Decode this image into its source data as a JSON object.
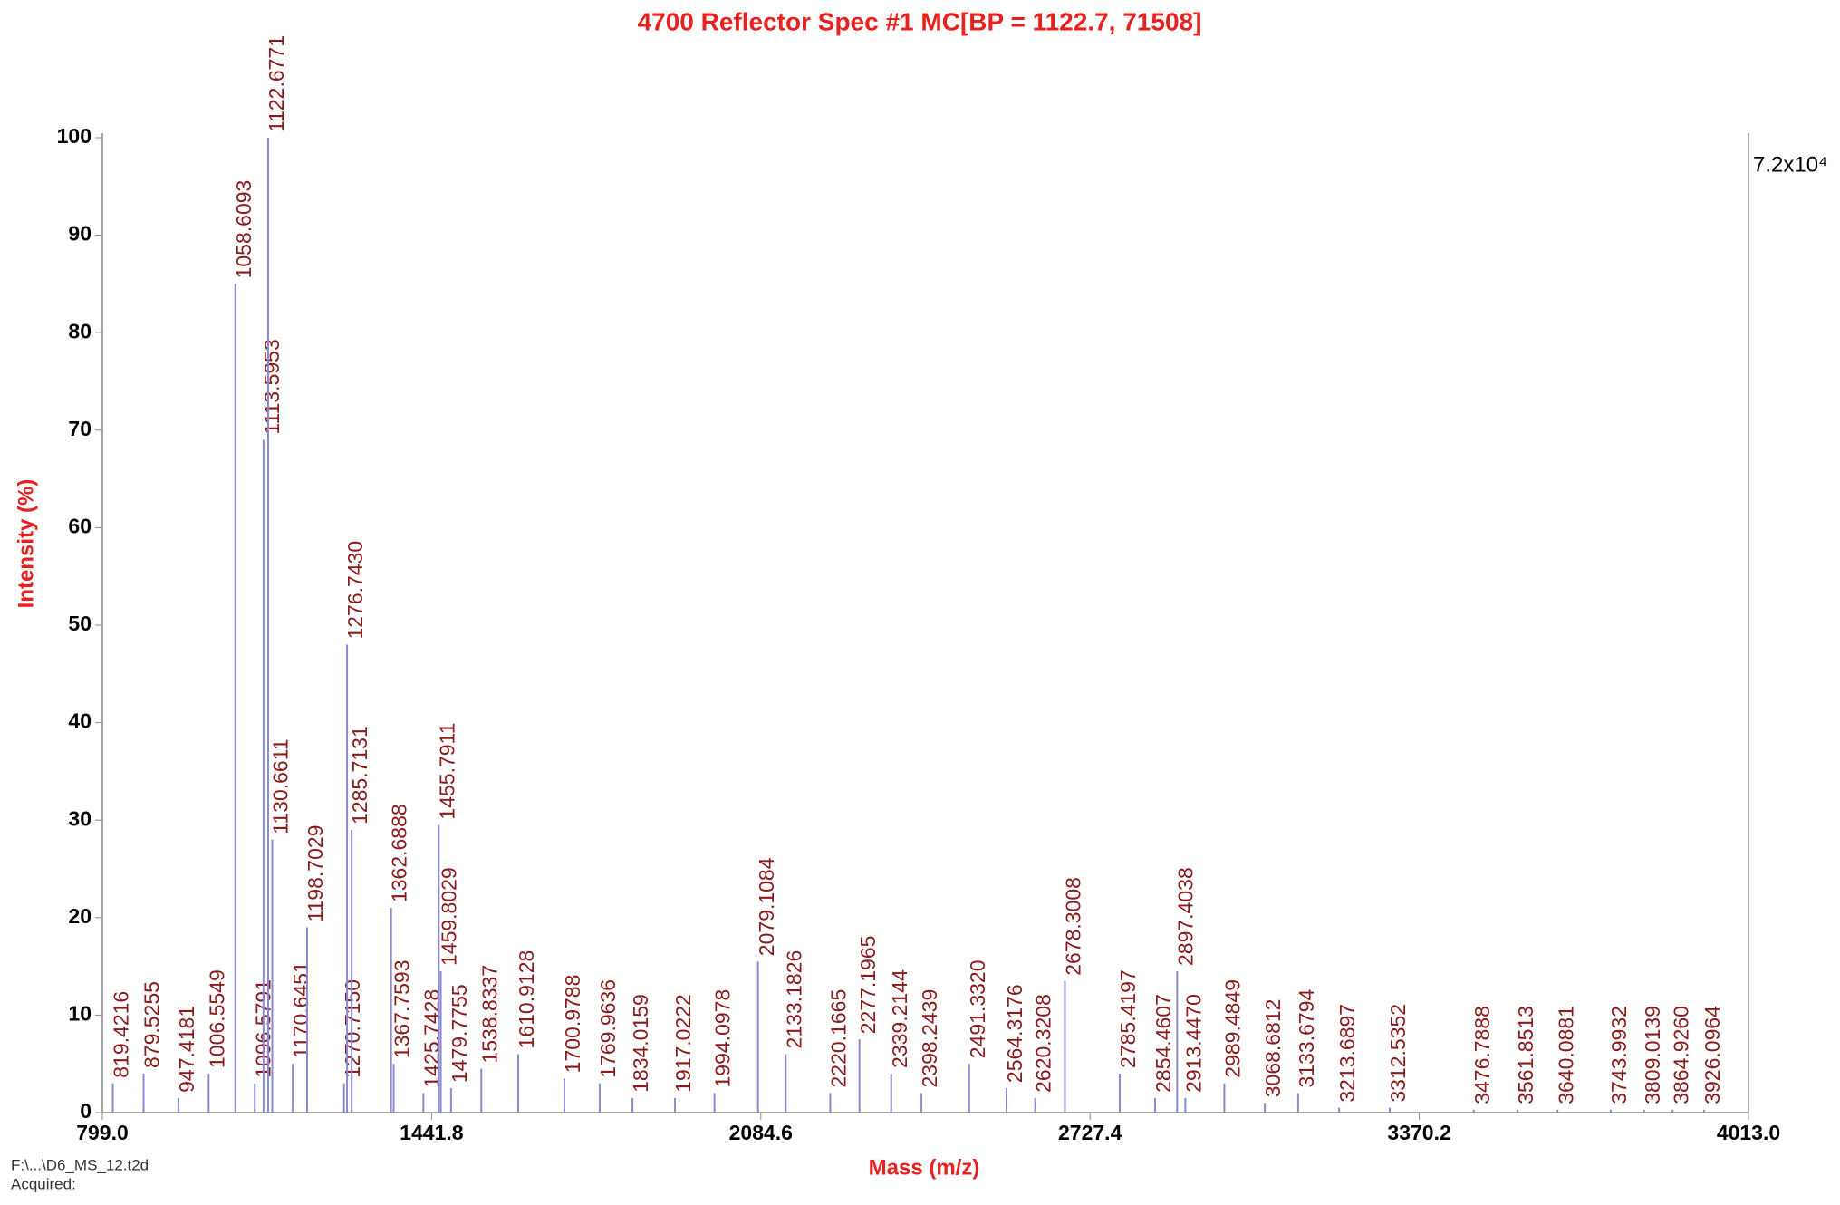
{
  "chart_data": {
    "type": "stick",
    "title": "4700 Reflector Spec #1 MC[BP = 1122.7, 71508]",
    "x_label": "Mass (m/z)",
    "y_label": "Intensity (%)",
    "scale_annotation": "7.2x10⁴",
    "file_note": "F:\\...\\D6_MS_12.t2d",
    "acquired_note": "Acquired:",
    "color": "#8a8ad0",
    "label_color": "#8b1a1a",
    "xlim": [
      799,
      4013
    ],
    "xticks": [
      {
        "value": 799,
        "label": "799.0"
      },
      1441.8,
      2084.6,
      2727.4,
      3370.2,
      {
        "value": 4013,
        "label": "4013.0"
      }
    ],
    "ylim": [
      0,
      100
    ],
    "yticks": [
      0,
      10,
      20,
      30,
      40,
      50,
      60,
      70,
      80,
      90,
      100
    ],
    "x": [
      819.4216,
      879.5255,
      947.4181,
      1006.5549,
      1058.6093,
      1096.5791,
      1113.5953,
      1122.6771,
      1130.6611,
      1170.6451,
      1198.7029,
      1270.715,
      1276.743,
      1285.7131,
      1362.6888,
      1367.7593,
      1425.7428,
      1455.7911,
      1459.8029,
      1479.7755,
      1538.8337,
      1610.9128,
      1700.9788,
      1769.9636,
      1834.0159,
      1917.0222,
      1994.0978,
      2079.1084,
      2133.1826,
      2220.1665,
      2277.1965,
      2339.2144,
      2398.2439,
      2491.332,
      2564.3176,
      2620.3208,
      2678.3008,
      2785.4197,
      2854.4607,
      2897.4038,
      2913.447,
      2989.4849,
      3068.6812,
      3133.6794,
      3213.6897,
      3312.5352,
      3476.7888,
      3561.8513,
      3640.0881,
      3743.9932,
      3809.0139,
      3864.926,
      3926.0964
    ],
    "x_labels": [
      "819.4216",
      "879.5255",
      "947.4181",
      "1006.5549",
      "1058.6093",
      "1096.5791",
      "1113.5953",
      "1122.6771",
      "1130.6611",
      "1170.6451",
      "1198.7029",
      "1270.7150",
      "1276.7430",
      "1285.7131",
      "1362.6888",
      "1367.7593",
      "1425.7428",
      "1455.7911",
      "1459.8029",
      "1479.7755",
      "1538.8337",
      "1610.9128",
      "1700.9788",
      "1769.9636",
      "1834.0159",
      "1917.0222",
      "1994.0978",
      "2079.1084",
      "2133.1826",
      "2220.1665",
      "2277.1965",
      "2339.2144",
      "2398.2439",
      "2491.3320",
      "2564.3176",
      "2620.3208",
      "2678.3008",
      "2785.4197",
      "2854.4607",
      "2897.4038",
      "2913.4470",
      "2989.4849",
      "3068.6812",
      "3133.6794",
      "3213.6897",
      "3312.5352",
      "3476.7888",
      "3561.8513",
      "3640.0881",
      "3743.9932",
      "3809.0139",
      "3864.9260",
      "3926.0964"
    ],
    "values": [
      3,
      4,
      1.5,
      4,
      85,
      3,
      69,
      100,
      28,
      5,
      19,
      3,
      48,
      29,
      21,
      5,
      2,
      29.5,
      14.5,
      2.5,
      4.5,
      6,
      3.5,
      3,
      1.5,
      1.5,
      2,
      15.5,
      6,
      2,
      7.5,
      4,
      2,
      5,
      2.5,
      1.5,
      13.5,
      4,
      1.5,
      14.5,
      1.5,
      3,
      1,
      2,
      0.5,
      0.5,
      0.3,
      0.3,
      0.3,
      0.3,
      0.3,
      0.3,
      0.3
    ]
  }
}
